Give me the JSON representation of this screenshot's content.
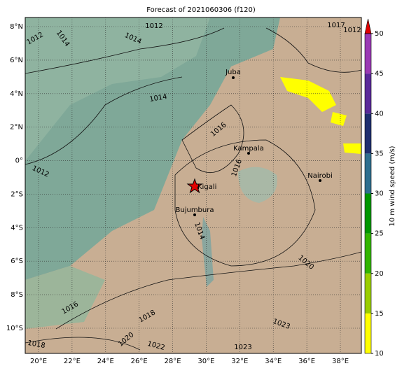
{
  "map": {
    "title": "Forecast of 2021060306 (f120)",
    "lon_ticks": [
      {
        "value": 20,
        "label": "20°E"
      },
      {
        "value": 22,
        "label": "22°E"
      },
      {
        "value": 24,
        "label": "24°E"
      },
      {
        "value": 26,
        "label": "26°E"
      },
      {
        "value": 28,
        "label": "28°E"
      },
      {
        "value": 30,
        "label": "30°E"
      },
      {
        "value": 32,
        "label": "32°E"
      },
      {
        "value": 34,
        "label": "34°E"
      },
      {
        "value": 36,
        "label": "36°E"
      },
      {
        "value": 38,
        "label": "38°E"
      }
    ],
    "lat_ticks": [
      {
        "value": 8,
        "label": "8°N"
      },
      {
        "value": 6,
        "label": "6°N"
      },
      {
        "value": 4,
        "label": "4°N"
      },
      {
        "value": 2,
        "label": "2°N"
      },
      {
        "value": 0,
        "label": "0°"
      },
      {
        "value": -2,
        "label": "2°S"
      },
      {
        "value": -4,
        "label": "4°S"
      },
      {
        "value": -6,
        "label": "6°S"
      },
      {
        "value": -8,
        "label": "8°S"
      },
      {
        "value": -10,
        "label": "10°S"
      }
    ],
    "cities": [
      "Juba",
      "Kampala",
      "Kigali",
      "Nairobi",
      "Bujumbura"
    ],
    "contour_labels": [
      "1012",
      "1014",
      "1014",
      "1012",
      "1017",
      "1012",
      "1014",
      "1012",
      "1016",
      "1016",
      "1014",
      "1020",
      "1016",
      "1018",
      "1020",
      "1022",
      "1018",
      "1023",
      "1023"
    ],
    "colorbar": {
      "label": "10 m wind speed (m/s)",
      "lim": [
        10,
        50
      ],
      "ticks": [
        10,
        15,
        20,
        25,
        30,
        35,
        40,
        45,
        50
      ],
      "colors": [
        "#ffff00",
        "#9acd00",
        "#32b400",
        "#009600",
        "#2f6f8f",
        "#1f2f6f",
        "#5a2a9a",
        "#9a3ab4"
      ],
      "extend_color": "#e00000"
    }
  }
}
